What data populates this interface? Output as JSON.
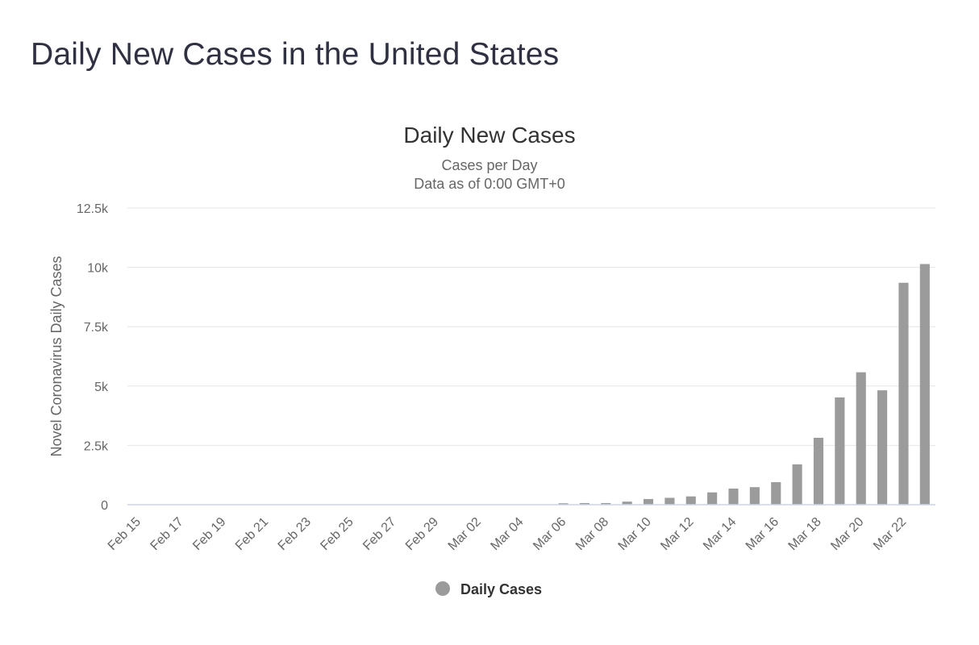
{
  "page": {
    "title": "Daily New Cases in the United States"
  },
  "chart_data": {
    "type": "bar",
    "title": "Daily New Cases",
    "subtitle_lines": [
      "Cases per Day",
      "Data as of 0:00 GMT+0"
    ],
    "xlabel": "",
    "ylabel": "Novel Coronavirus Daily Cases",
    "ylim": [
      0,
      12500
    ],
    "yticks": [
      0,
      2500,
      5000,
      7500,
      10000,
      12500
    ],
    "ytick_labels": [
      "0",
      "2.5k",
      "5k",
      "7.5k",
      "10k",
      "12.5k"
    ],
    "grid": true,
    "legend_position": "bottom-center",
    "bar_color": "#9b9b9b",
    "categories": [
      "Feb 15",
      "Feb 16",
      "Feb 17",
      "Feb 18",
      "Feb 19",
      "Feb 20",
      "Feb 21",
      "Feb 22",
      "Feb 23",
      "Feb 24",
      "Feb 25",
      "Feb 26",
      "Feb 27",
      "Feb 28",
      "Feb 29",
      "Mar 01",
      "Mar 02",
      "Mar 03",
      "Mar 04",
      "Mar 05",
      "Mar 06",
      "Mar 07",
      "Mar 08",
      "Mar 09",
      "Mar 10",
      "Mar 11",
      "Mar 12",
      "Mar 13",
      "Mar 14",
      "Mar 15",
      "Mar 16",
      "Mar 17",
      "Mar 18",
      "Mar 19",
      "Mar 20",
      "Mar 21",
      "Mar 22",
      "Mar 23"
    ],
    "xtick_labels": [
      "Feb 15",
      "Feb 17",
      "Feb 19",
      "Feb 21",
      "Feb 23",
      "Feb 25",
      "Feb 27",
      "Feb 29",
      "Mar 02",
      "Mar 04",
      "Mar 06",
      "Mar 08",
      "Mar 10",
      "Mar 12",
      "Mar 14",
      "Mar 16",
      "Mar 18",
      "Mar 20",
      "Mar 22"
    ],
    "series": [
      {
        "name": "Daily Cases",
        "values": [
          0,
          0,
          0,
          0,
          0,
          0,
          0,
          0,
          0,
          0,
          0,
          0,
          0,
          0,
          0,
          0,
          0,
          0,
          0,
          0,
          60,
          70,
          70,
          130,
          240,
          290,
          350,
          520,
          680,
          740,
          950,
          1700,
          2820,
          4520,
          5580,
          4820,
          9350,
          10140
        ]
      }
    ]
  }
}
